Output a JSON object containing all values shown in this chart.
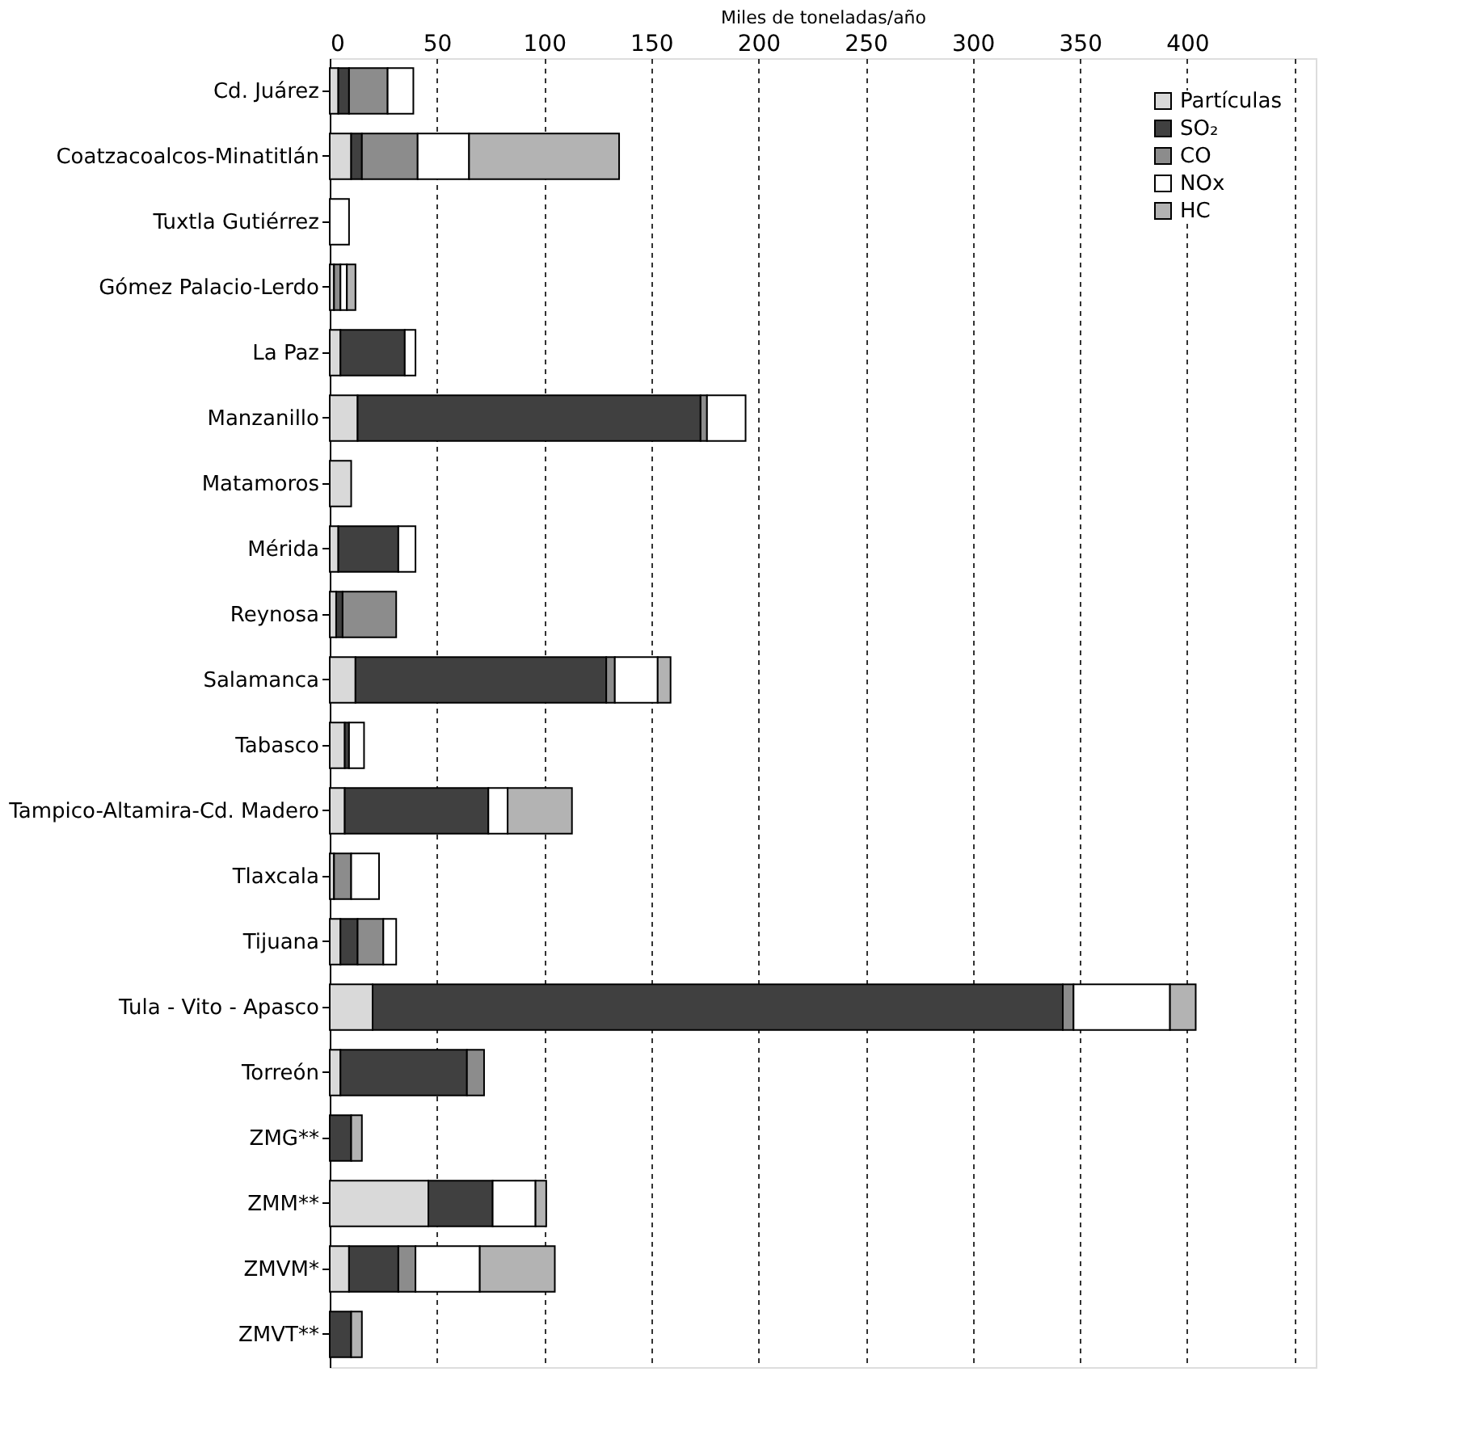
{
  "chart_data": {
    "type": "bar",
    "orientation": "horizontal",
    "stacked": true,
    "xlabel": "Miles de toneladas/año",
    "categories": [
      "Cd. Juárez",
      "Coatzacoalcos-Minatitlán",
      "Tuxtla Gutiérrez",
      "Gómez Palacio-Lerdo",
      "La Paz",
      "Manzanillo",
      "Matamoros",
      "Mérida",
      "Reynosa",
      "Salamanca",
      "Tabasco",
      "Tampico-Altamira-Cd. Madero",
      "Tlaxcala",
      "Tijuana",
      "Tula - Vito - Apasco",
      "Torreón",
      "ZMG**",
      "ZMM**",
      "ZMVM*",
      "ZMVT**"
    ],
    "series": [
      {
        "name": "Partículas",
        "color": "#d9d9d9",
        "values": [
          4,
          10,
          null,
          2,
          5,
          13,
          10,
          4,
          3,
          12,
          7,
          7,
          2,
          5,
          20,
          5,
          null,
          46,
          9,
          null
        ]
      },
      {
        "name": "SO₂",
        "color": "#404040",
        "values": [
          5,
          5,
          null,
          null,
          30,
          160,
          null,
          28,
          3,
          117,
          2,
          67,
          null,
          8,
          322,
          59,
          10,
          30,
          23,
          10
        ]
      },
      {
        "name": "CO",
        "color": "#8c8c8c",
        "values": [
          18,
          26,
          null,
          3,
          null,
          3,
          null,
          null,
          25,
          4,
          null,
          null,
          8,
          12,
          5,
          8,
          null,
          null,
          8,
          null
        ]
      },
      {
        "name": "NOx",
        "color": "#ffffff",
        "values": [
          12,
          24,
          9,
          3,
          5,
          18,
          null,
          8,
          null,
          20,
          7,
          9,
          13,
          6,
          45,
          null,
          null,
          20,
          30,
          null
        ]
      },
      {
        "name": "HC",
        "color": "#b3b3b3",
        "values": [
          null,
          70,
          null,
          4,
          null,
          null,
          null,
          null,
          null,
          6,
          null,
          30,
          null,
          null,
          12,
          null,
          5,
          5,
          35,
          5
        ]
      }
    ],
    "xlim": [
      0,
      460
    ],
    "xticks": [
      0,
      50,
      100,
      150,
      200,
      250,
      300,
      350,
      400,
      {
        "value": 450,
        "label": null
      }
    ],
    "grid": "x",
    "legend": "top right"
  }
}
